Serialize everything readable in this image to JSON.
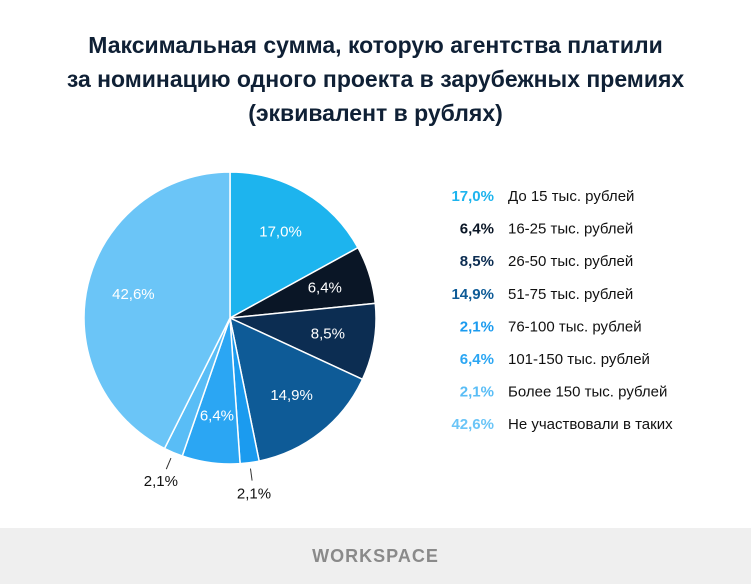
{
  "chart_data": {
    "type": "pie",
    "title": "Максимальная сумма, которую агентства платили\nза номинацию одного проекта в зарубежных премиях\n(эквивалент в рублях)",
    "categories": [
      "До 15 тыс. рублей",
      "16-25 тыс. рублей",
      "26-50 тыс. рублей",
      "51-75 тыс. рублей",
      "76-100 тыс. рублей",
      "101-150 тыс. рублей",
      "Более 150 тыс. рублей",
      "Не участвовали в таких"
    ],
    "values": [
      17.0,
      6.4,
      8.5,
      14.9,
      2.1,
      6.4,
      2.1,
      42.6
    ],
    "value_labels": [
      "17,0%",
      "6,4%",
      "8,5%",
      "14,9%",
      "2,1%",
      "6,4%",
      "2,1%",
      "42,6%"
    ],
    "colors": [
      "#1db4ee",
      "#0a1626",
      "#0c2d52",
      "#0e5b97",
      "#1b9bef",
      "#2ba6f3",
      "#59bdf6",
      "#6bc5f7"
    ],
    "legend": "right"
  },
  "footer": {
    "brand": "WORKSPACE"
  }
}
